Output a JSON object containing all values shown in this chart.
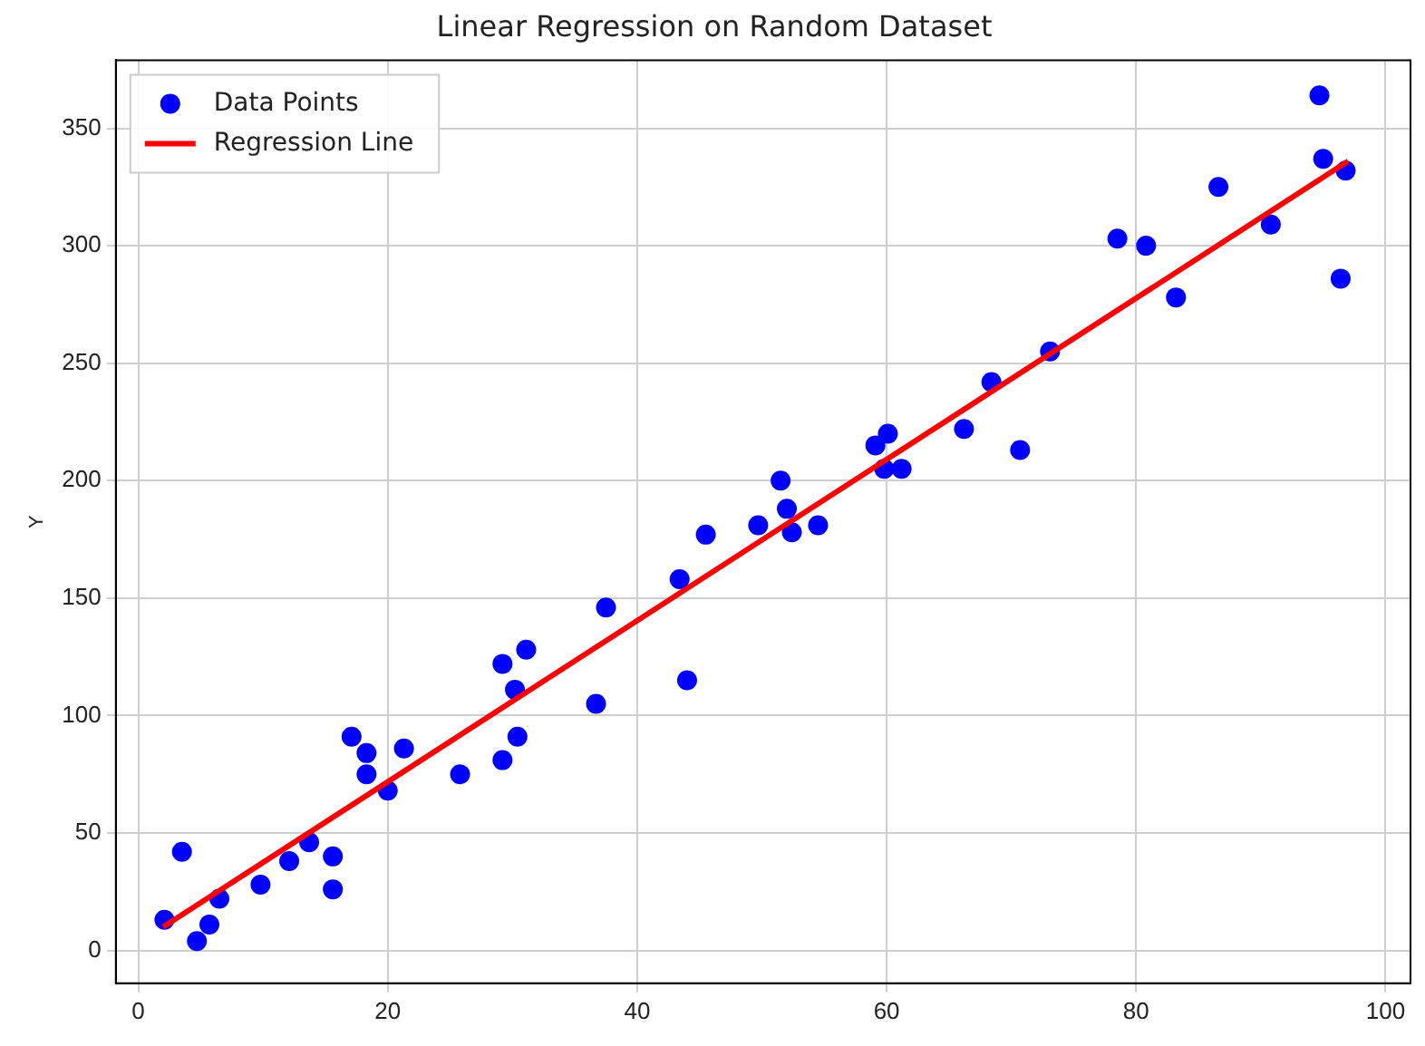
{
  "chart_data": {
    "type": "scatter",
    "title": "Linear Regression on Random Dataset",
    "ylabel": "Y",
    "xlim": [
      -1.8,
      102
    ],
    "ylim": [
      -14,
      379
    ],
    "xticks": [
      0,
      20,
      40,
      60,
      80,
      100
    ],
    "yticks": [
      0,
      50,
      100,
      150,
      200,
      250,
      300,
      350
    ],
    "grid": true,
    "legend": "top left",
    "series": [
      {
        "name": "Data Points",
        "type": "scatter",
        "marker": "circle",
        "color": "#0000ff",
        "x": [
          2.1,
          3.5,
          4.7,
          5.7,
          6.5,
          9.8,
          12.1,
          13.7,
          15.6,
          15.6,
          17.1,
          18.3,
          18.3,
          20,
          21.3,
          25.8,
          29.2,
          29.2,
          30.2,
          30.4,
          31.1,
          36.7,
          37.5,
          43.4,
          44,
          45.5,
          49.7,
          51.5,
          52,
          52.4,
          54.5,
          59.1,
          60.1,
          59.8,
          61.2,
          66.2,
          68.4,
          70.7,
          73.1,
          78.5,
          80.8,
          83.2,
          86.6,
          90.8,
          94.7,
          95,
          96.4,
          96.8
        ],
        "values": [
          13,
          42,
          4,
          11,
          22,
          28,
          38,
          46,
          40,
          26,
          91,
          84,
          75,
          68,
          86,
          75,
          81,
          122,
          111,
          91,
          128,
          105,
          146,
          158,
          115,
          177,
          181,
          200,
          188,
          178,
          181,
          215,
          220,
          205,
          205,
          222,
          242,
          213,
          255,
          303,
          300,
          278,
          325,
          309,
          364,
          337,
          286,
          332
        ]
      },
      {
        "name": "Regression Line",
        "type": "line",
        "color": "#ff0000",
        "line_style": "solid",
        "x": [
          2,
          97
        ],
        "values": [
          10,
          336
        ]
      }
    ]
  }
}
